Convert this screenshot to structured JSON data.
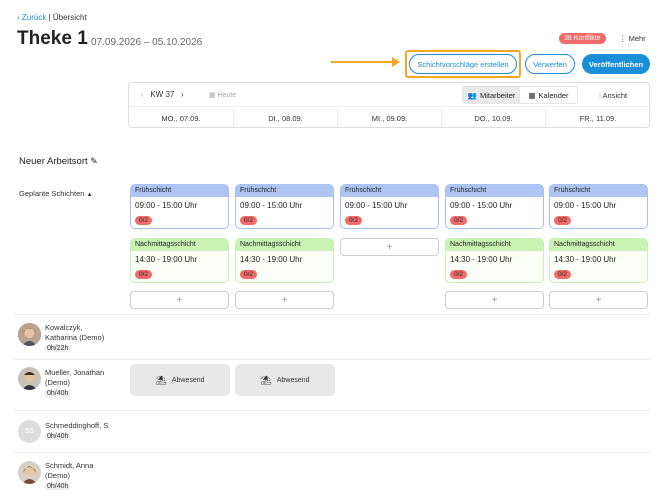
{
  "breadcrumb": {
    "back": "Zurück",
    "separator": " | ",
    "current": "Übersicht"
  },
  "header": {
    "title": "Theke 1",
    "date_range": "07.09.2026 – 05.10.2026",
    "conflicts": "38 Konflikte",
    "more": "Mehr"
  },
  "actions": {
    "suggest": "Schichtvorschläge erstellen",
    "discard": "Verwerfen",
    "publish": "Veröffentlichen"
  },
  "toolbar": {
    "week": "KW 37",
    "today": "Heute",
    "employees": "Mitarbeiter",
    "calendar": "Kalender",
    "view": "Ansicht",
    "days": [
      "MO., 07.09.",
      "DI., 08.09.",
      "MI., 09.09.",
      "DO., 10.09.",
      "FR., 11.09."
    ]
  },
  "section": {
    "title": "Neuer Arbeitsort",
    "planned": "Geplante Schichten"
  },
  "shifts": {
    "early": {
      "name": "Frühschicht",
      "time": "09:00 - 15:00 Uhr",
      "count": "0/2"
    },
    "late": {
      "name": "Nachmittagsschicht",
      "time": "14:30 - 19:00 Uhr",
      "count": "0/2"
    }
  },
  "people": [
    {
      "name": "Kowalczyk, Katharina (Demo)",
      "hours": "0h/22h"
    },
    {
      "name": "Mueller, Jonathan (Demo)",
      "hours": "0h/40h"
    },
    {
      "name": "Schmeddinghoff, S",
      "initials": "SS",
      "hours": "0h/40h"
    },
    {
      "name": "Schmidt, Anna (Demo)",
      "hours": "0h/40h"
    }
  ],
  "absent_label": "Abwesend",
  "colors": {
    "accent": "#1a8fd8",
    "highlight": "#f5a623",
    "conflict": "#f26b6b",
    "early": "#aec4f2",
    "late": "#c9f2b3"
  }
}
